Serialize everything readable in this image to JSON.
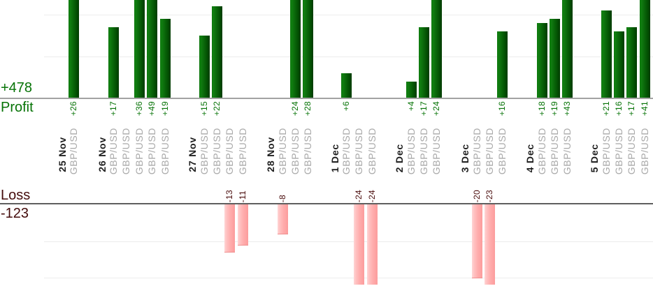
{
  "chart_data": {
    "type": "bar",
    "description": "Per-trade profit and loss bars grouped by day",
    "instrument": "GBP/USD",
    "profit_axis": {
      "label": "Profit",
      "total": "+478",
      "gridline_values": [
        10,
        20
      ]
    },
    "loss_axis": {
      "label": "Loss",
      "total": "-123",
      "gridline_values": [
        -10,
        -20
      ]
    },
    "colors": {
      "profit_bar": "#0b6b0b",
      "loss_bar": "#ffadad",
      "profit_text": "#067306",
      "loss_text": "#4a0c0c",
      "date_text": "#1f1f1f",
      "symbol_text": "#a9a9a9"
    },
    "groups": [
      {
        "date": "25 Nov",
        "trades": [
          {
            "symbol": "GBP/USD",
            "value": 26,
            "label": "+26"
          }
        ]
      },
      {
        "date": "26 Nov",
        "trades": [
          {
            "symbol": "GBP/USD",
            "value": 17,
            "label": "+17"
          },
          {
            "symbol": "GBP/USD",
            "value": 0,
            "label": ""
          },
          {
            "symbol": "GBP/USD",
            "value": 36,
            "label": "+36"
          },
          {
            "symbol": "GBP/USD",
            "value": 49,
            "label": "+49"
          },
          {
            "symbol": "GBP/USD",
            "value": 19,
            "label": "+19"
          }
        ]
      },
      {
        "date": "27 Nov",
        "trades": [
          {
            "symbol": "GBP/USD",
            "value": 15,
            "label": "+15"
          },
          {
            "symbol": "GBP/USD",
            "value": 22,
            "label": "+22"
          },
          {
            "symbol": "GBP/USD",
            "value": -13,
            "label": "-13"
          },
          {
            "symbol": "GBP/USD",
            "value": -11,
            "label": "-11"
          }
        ]
      },
      {
        "date": "28 Nov",
        "trades": [
          {
            "symbol": "GBP/USD",
            "value": -8,
            "label": "-8"
          },
          {
            "symbol": "GBP/USD",
            "value": 24,
            "label": "+24"
          },
          {
            "symbol": "GBP/USD",
            "value": 28,
            "label": "+28"
          }
        ]
      },
      {
        "date": "1 Dec",
        "trades": [
          {
            "symbol": "GBP/USD",
            "value": 6,
            "label": "+6"
          },
          {
            "symbol": "GBP/USD",
            "value": -24,
            "label": "-24"
          },
          {
            "symbol": "GBP/USD",
            "value": -24,
            "label": "-24"
          }
        ]
      },
      {
        "date": "2 Dec",
        "trades": [
          {
            "symbol": "GBP/USD",
            "value": 4,
            "label": "+4"
          },
          {
            "symbol": "GBP/USD",
            "value": 17,
            "label": "+17"
          },
          {
            "symbol": "GBP/USD",
            "value": 24,
            "label": "+24"
          }
        ]
      },
      {
        "date": "3 Dec",
        "trades": [
          {
            "symbol": "GBP/USD",
            "value": -20,
            "label": "-20"
          },
          {
            "symbol": "GBP/USD",
            "value": -23,
            "label": "-23"
          },
          {
            "symbol": "GBP/USD",
            "value": 16,
            "label": "+16"
          }
        ]
      },
      {
        "date": "4 Dec",
        "trades": [
          {
            "symbol": "GBP/USD",
            "value": 18,
            "label": "+18"
          },
          {
            "symbol": "GBP/USD",
            "value": 19,
            "label": "+19"
          },
          {
            "symbol": "GBP/USD",
            "value": 43,
            "label": "+43"
          }
        ]
      },
      {
        "date": "5 Dec",
        "trades": [
          {
            "symbol": "GBP/USD",
            "value": 21,
            "label": "+21"
          },
          {
            "symbol": "GBP/USD",
            "value": 16,
            "label": "+16"
          },
          {
            "symbol": "GBP/USD",
            "value": 17,
            "label": "+17"
          },
          {
            "symbol": "GBP/USD",
            "value": 41,
            "label": "+41"
          }
        ]
      }
    ]
  }
}
